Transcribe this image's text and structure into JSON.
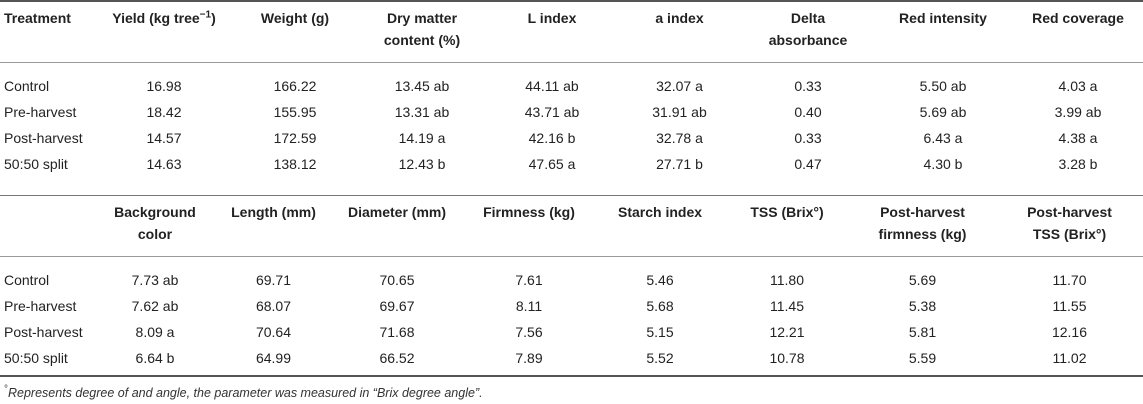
{
  "table1": {
    "headers": [
      "Treatment",
      "Yield (kg tree",
      "Weight (g)",
      "Dry matter content (%)",
      "L index",
      "a index",
      "Delta absorbance",
      "Red intensity",
      "Red coverage"
    ],
    "yield_sup": "−1",
    "yield_close": ")",
    "rows": [
      [
        "Control",
        "16.98",
        "166.22",
        "13.45 ab",
        "44.11 ab",
        "32.07 a",
        "0.33",
        "5.50 ab",
        "4.03 a"
      ],
      [
        "Pre-harvest",
        "18.42",
        "155.95",
        "13.31 ab",
        "43.71 ab",
        "31.91 ab",
        "0.40",
        "5.69 ab",
        "3.99 ab"
      ],
      [
        "Post-harvest",
        "14.57",
        "172.59",
        "14.19 a",
        "42.16 b",
        "32.78 a",
        "0.33",
        "6.43 a",
        "4.38 a"
      ],
      [
        "50:50 split",
        "14.63",
        "138.12",
        "12.43 b",
        "47.65 a",
        "27.71 b",
        "0.47",
        "4.30 b",
        "3.28 b"
      ]
    ]
  },
  "table2": {
    "headers": [
      "",
      "Background color",
      "Length (mm)",
      "Diameter (mm)",
      "Firmness (kg)",
      "Starch index",
      "TSS (Brix°)",
      "Post-harvest firmness (kg)",
      "Post-harvest TSS (Brix°)"
    ],
    "rows": [
      [
        "Control",
        "7.73 ab",
        "69.71",
        "70.65",
        "7.61",
        "5.46",
        "11.80",
        "5.69",
        "11.70"
      ],
      [
        "Pre-harvest",
        "7.62 ab",
        "68.07",
        "69.67",
        "8.11",
        "5.68",
        "11.45",
        "5.38",
        "11.55"
      ],
      [
        "Post-harvest",
        "8.09 a",
        "70.64",
        "71.68",
        "7.56",
        "5.15",
        "12.21",
        "5.81",
        "12.16"
      ],
      [
        "50:50 split",
        "6.64 b",
        "64.99",
        "66.52",
        "7.89",
        "5.52",
        "10.78",
        "5.59",
        "11.02"
      ]
    ]
  },
  "footnote": {
    "marker": "°",
    "text": "Represents degree of and angle, the parameter was measured in “Brix degree angle”."
  }
}
